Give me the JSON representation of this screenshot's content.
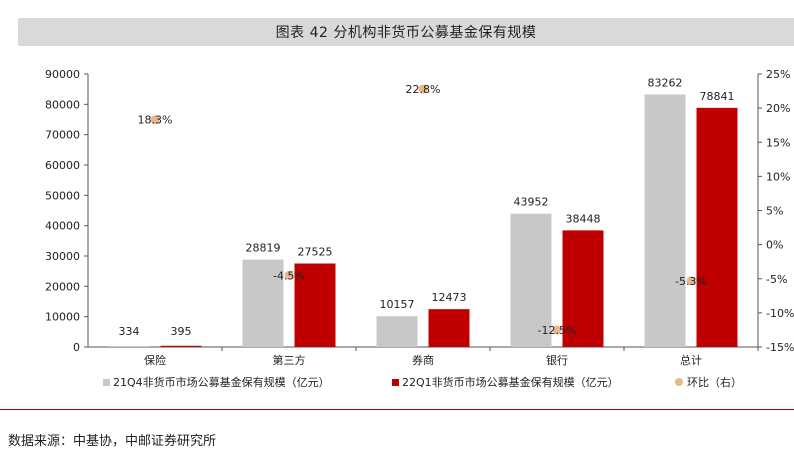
{
  "header": {
    "title": "图表 42 分机构非货币公募基金保有规模"
  },
  "footer": {
    "source": "数据来源：中基协，中邮证券研究所"
  },
  "colors": {
    "series1": "#c8c8c8",
    "series2": "#c00000",
    "series3": "#e8b88a",
    "title_bg": "#d9d9d9",
    "footer_line": "#b00000"
  },
  "chart_data": {
    "type": "bar",
    "categories": [
      "保险",
      "第三方",
      "券商",
      "银行",
      "总计"
    ],
    "series": [
      {
        "name": "21Q4非货币市场公募基金保有规模（亿元）",
        "type": "bar",
        "axis": "left",
        "values": [
          334,
          28819,
          10157,
          43952,
          83262
        ]
      },
      {
        "name": "22Q1非货币市场公募基金保有规模（亿元）",
        "type": "bar",
        "axis": "left",
        "values": [
          395,
          27525,
          12473,
          38448,
          78841
        ]
      },
      {
        "name": "环比（右）",
        "type": "scatter",
        "axis": "right",
        "values": [
          18.3,
          -4.5,
          22.8,
          -12.5,
          -5.3
        ],
        "labels": [
          "18.3%",
          "-4.5%",
          "22.8%",
          "-12.5%",
          "-5.3%"
        ]
      }
    ],
    "y_left": {
      "min": 0,
      "max": 90000,
      "ticks": [
        "0",
        "10000",
        "20000",
        "30000",
        "40000",
        "50000",
        "60000",
        "70000",
        "80000",
        "90000"
      ]
    },
    "y_right": {
      "min": -15,
      "max": 25,
      "ticks": [
        "-15%",
        "-10%",
        "-5%",
        "0%",
        "5%",
        "10%",
        "15%",
        "20%",
        "25%"
      ]
    },
    "grid": false,
    "legend_position": "bottom"
  }
}
